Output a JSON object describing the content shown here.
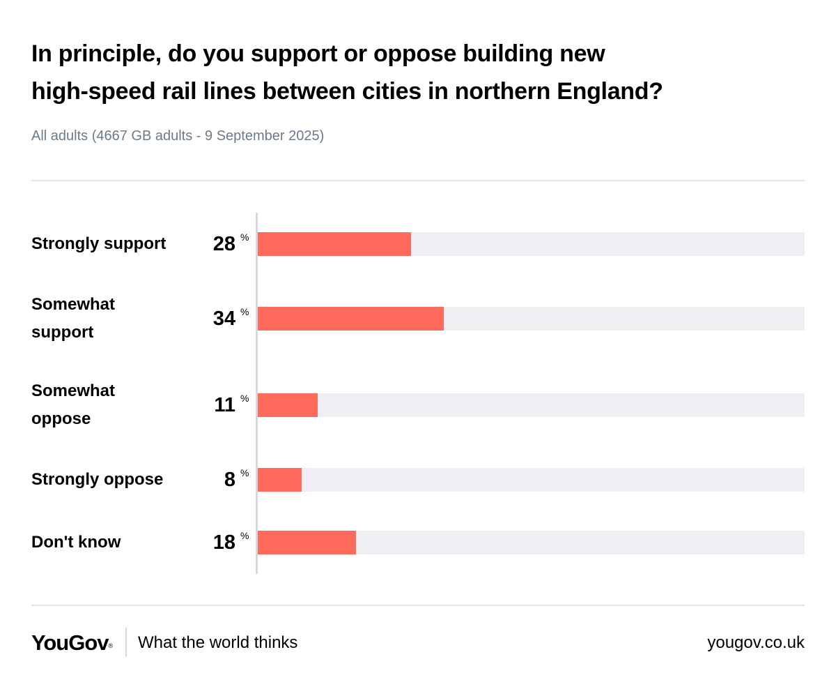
{
  "title_lines": [
    "In principle, do you support or oppose building new",
    "high-speed rail lines between cities in northern England?"
  ],
  "subtitle": "All adults (4667 GB adults - 9 September 2025)",
  "unit_symbol": "%",
  "colors": {
    "bar": "#fe6a5b",
    "track": "#efeff3",
    "subtitle": "#6a7a8c"
  },
  "chart_data": {
    "type": "bar",
    "orientation": "horizontal",
    "title": "In principle, do you support or oppose building new high-speed rail lines between cities in northern England?",
    "subtitle": "All adults (4667 GB adults - 9 September 2025)",
    "categories": [
      "Strongly support",
      "Somewhat support",
      "Somewhat oppose",
      "Strongly oppose",
      "Don't know"
    ],
    "values": [
      28,
      34,
      11,
      8,
      18
    ],
    "unit": "%",
    "xlim": [
      0,
      100
    ],
    "grid": false
  },
  "footer": {
    "brand": "YouGov",
    "brand_mark": "®",
    "tagline": "What the world thinks",
    "url": "yougov.co.uk"
  }
}
